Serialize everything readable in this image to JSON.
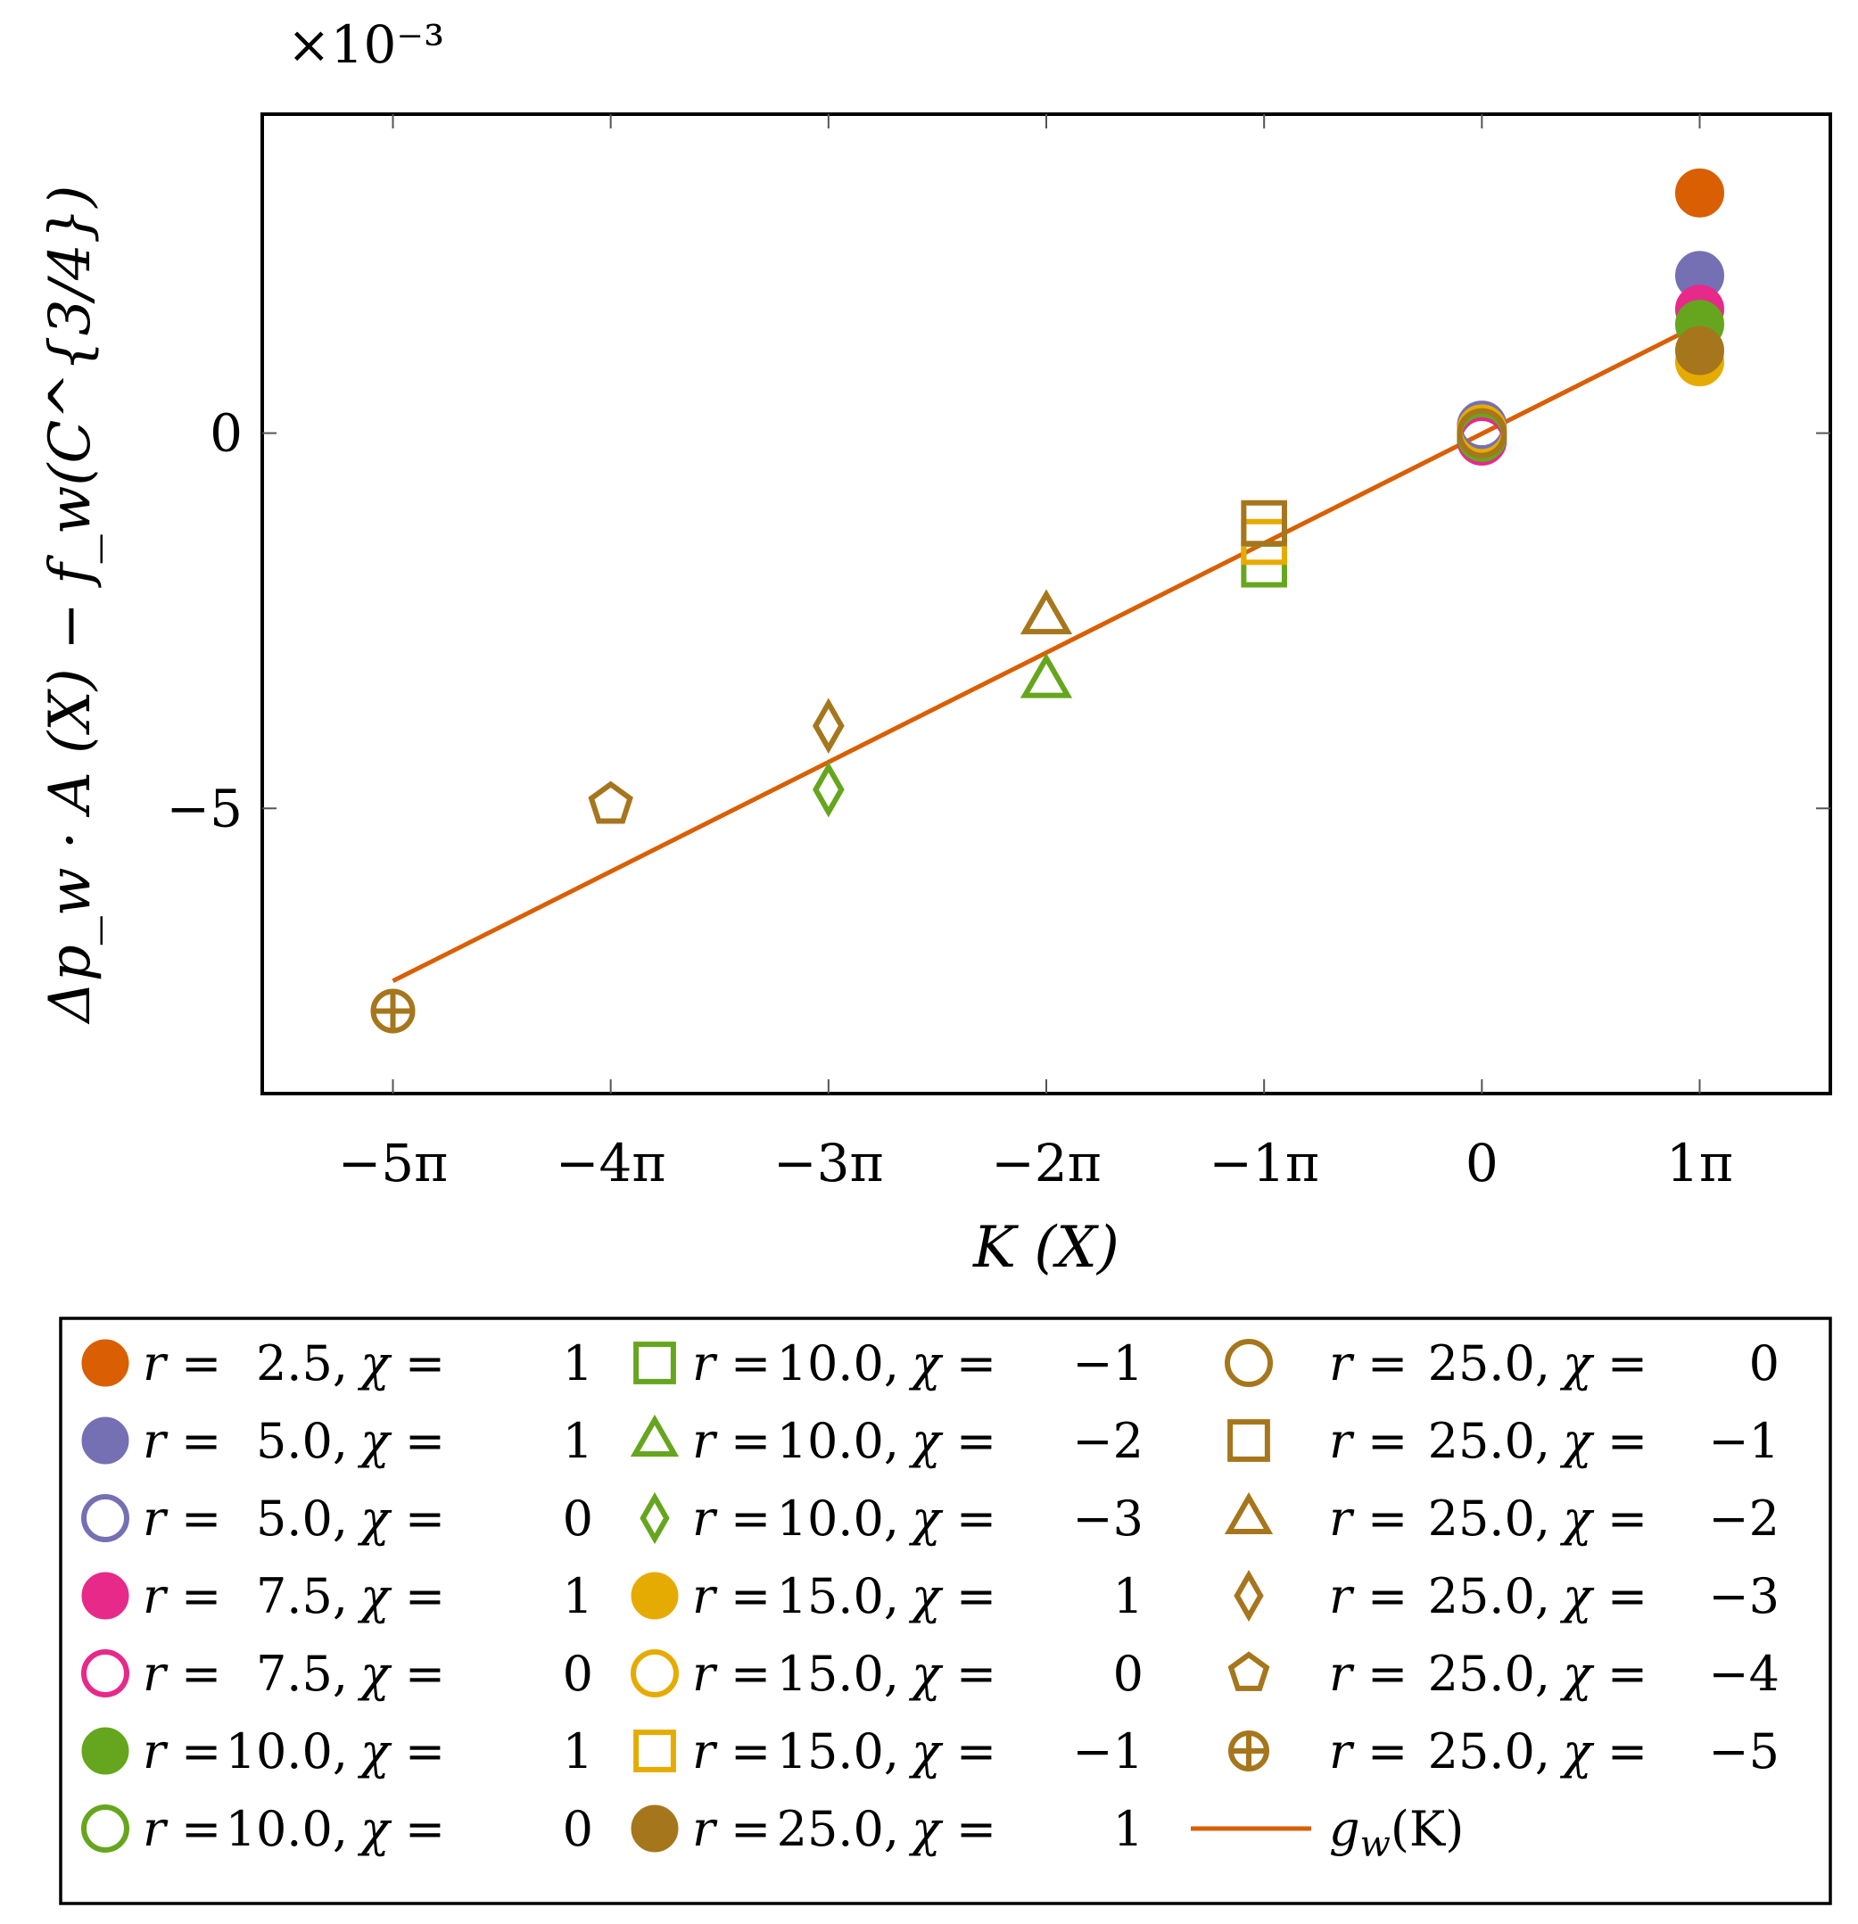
{
  "chart_data": {
    "type": "scatter",
    "title": "",
    "xlabel": "K (X)",
    "ylabel": "Δp_w · A (X) − f_w(C^{3/4})",
    "y_multiplier": "×10⁻³",
    "x_ticks": [
      {
        "value": -5,
        "label": "−5π"
      },
      {
        "value": -4,
        "label": "−4π"
      },
      {
        "value": -3,
        "label": "−3π"
      },
      {
        "value": -2,
        "label": "−2π"
      },
      {
        "value": -1,
        "label": "−1π"
      },
      {
        "value": 0,
        "label": "0"
      },
      {
        "value": 1,
        "label": "1π"
      }
    ],
    "y_ticks": [
      {
        "value": 0,
        "label": "0"
      },
      {
        "value": -5,
        "label": "−5"
      }
    ],
    "xlim": [
      -5.6,
      1.6
    ],
    "ylim": [
      -8.8,
      4.25
    ],
    "x_unit": "π",
    "y_unit_scale": 0.001,
    "grid": false,
    "legend_position": "below",
    "series": [
      {
        "name": "r = 2.5, χ = 1",
        "r": "2.5",
        "chi": "1",
        "marker": "circle",
        "filled": true,
        "color": "#d95f02",
        "points": [
          [
            1,
            3.2
          ]
        ]
      },
      {
        "name": "r = 5.0, χ = 1",
        "r": "5.0",
        "chi": "1",
        "marker": "circle",
        "filled": true,
        "color": "#7570b3",
        "points": [
          [
            1,
            2.1
          ]
        ]
      },
      {
        "name": "r = 5.0, χ = 0",
        "r": "5.0",
        "chi": "0",
        "marker": "circle",
        "filled": false,
        "color": "#7570b3",
        "points": [
          [
            0,
            0.1
          ]
        ]
      },
      {
        "name": "r = 7.5, χ = 1",
        "r": "7.5",
        "chi": "1",
        "marker": "circle",
        "filled": true,
        "color": "#e7298a",
        "points": [
          [
            1,
            1.65
          ]
        ]
      },
      {
        "name": "r = 7.5, χ = 0",
        "r": "7.5",
        "chi": "0",
        "marker": "circle",
        "filled": false,
        "color": "#e7298a",
        "points": [
          [
            0,
            -0.1
          ]
        ]
      },
      {
        "name": "r = 10.0, χ = 1",
        "r": "10.0",
        "chi": "1",
        "marker": "circle",
        "filled": true,
        "color": "#66a61e",
        "points": [
          [
            1,
            1.45
          ]
        ]
      },
      {
        "name": "r = 10.0, χ = 0",
        "r": "10.0",
        "chi": "0",
        "marker": "circle",
        "filled": false,
        "color": "#66a61e",
        "points": [
          [
            0,
            -0.05
          ]
        ]
      },
      {
        "name": "r = 10.0, χ = −1",
        "r": "10.0",
        "chi": "−1",
        "marker": "square",
        "filled": false,
        "color": "#66a61e",
        "points": [
          [
            -1,
            -1.75
          ]
        ]
      },
      {
        "name": "r = 10.0, χ = −2",
        "r": "10.0",
        "chi": "−2",
        "marker": "triangle",
        "filled": false,
        "color": "#66a61e",
        "points": [
          [
            -2,
            -3.3
          ]
        ]
      },
      {
        "name": "r = 10.0, χ = −3",
        "r": "10.0",
        "chi": "−3",
        "marker": "diamond",
        "filled": false,
        "color": "#66a61e",
        "points": [
          [
            -3,
            -4.75
          ]
        ]
      },
      {
        "name": "r = 15.0, χ = 1",
        "r": "15.0",
        "chi": "1",
        "marker": "circle",
        "filled": true,
        "color": "#e6ab02",
        "points": [
          [
            1,
            0.95
          ]
        ]
      },
      {
        "name": "r = 15.0, χ = 0",
        "r": "15.0",
        "chi": "0",
        "marker": "circle",
        "filled": false,
        "color": "#e6ab02",
        "points": [
          [
            0,
            0.05
          ]
        ]
      },
      {
        "name": "r = 15.0, χ = −1",
        "r": "15.0",
        "chi": "−1",
        "marker": "square",
        "filled": false,
        "color": "#e6ab02",
        "points": [
          [
            -1,
            -1.45
          ]
        ]
      },
      {
        "name": "r = 25.0, χ = 1",
        "r": "25.0",
        "chi": "1",
        "marker": "circle",
        "filled": true,
        "color": "#a6761d",
        "points": [
          [
            1,
            1.1
          ]
        ]
      },
      {
        "name": "r = 25.0, χ = 0",
        "r": "25.0",
        "chi": "0",
        "marker": "circle",
        "filled": false,
        "color": "#a6761d",
        "points": [
          [
            0,
            0.0
          ]
        ]
      },
      {
        "name": "r = 25.0, χ = −1",
        "r": "25.0",
        "chi": "−1",
        "marker": "square",
        "filled": false,
        "color": "#a6761d",
        "points": [
          [
            -1,
            -1.2
          ]
        ]
      },
      {
        "name": "r = 25.0, χ = −2",
        "r": "25.0",
        "chi": "−2",
        "marker": "triangle",
        "filled": false,
        "color": "#a6761d",
        "points": [
          [
            -2,
            -2.45
          ]
        ]
      },
      {
        "name": "r = 25.0, χ = −3",
        "r": "25.0",
        "chi": "−3",
        "marker": "diamond",
        "filled": false,
        "color": "#a6761d",
        "points": [
          [
            -3,
            -3.9
          ]
        ]
      },
      {
        "name": "r = 25.0, χ = −4",
        "r": "25.0",
        "chi": "−4",
        "marker": "pentagon",
        "filled": false,
        "color": "#a6761d",
        "points": [
          [
            -4,
            -4.95
          ]
        ]
      },
      {
        "name": "r = 25.0, χ = −5",
        "r": "25.0",
        "chi": "−5",
        "marker": "oplus",
        "filled": false,
        "color": "#a6761d",
        "points": [
          [
            -5,
            -7.7
          ]
        ]
      }
    ],
    "fit_line": {
      "name": "g_w(K)",
      "label_main": "g",
      "label_sub": "w",
      "label_arg": "(K)",
      "color": "#d95f02",
      "points": [
        [
          -5,
          -7.3
        ],
        [
          1,
          1.45
        ]
      ]
    }
  }
}
